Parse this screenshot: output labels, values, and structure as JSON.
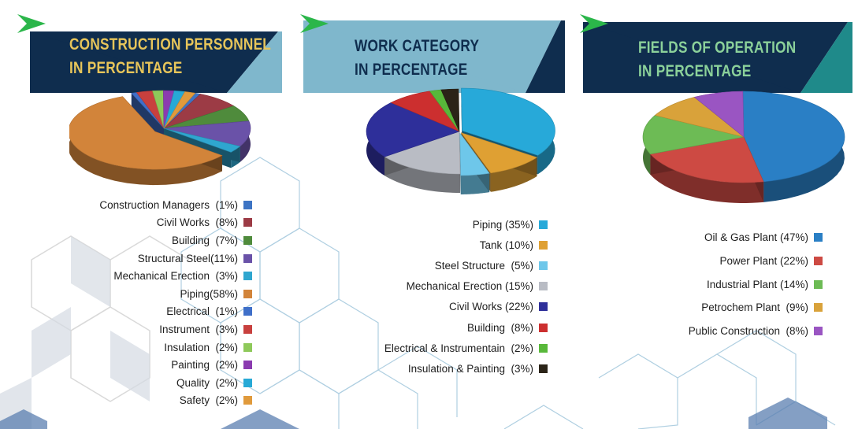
{
  "colors": {
    "banner_dark": "#0f2d4e",
    "banner_light": "#7fb7cc",
    "banner_teal": "#1f8a8a",
    "chevron_green": "#2bb64a",
    "title_yellow": "#e7c55a",
    "title_navy": "#0f2d4e",
    "title_green": "#8bd19a"
  },
  "chart_data": [
    {
      "type": "pie",
      "title_line1": "CONSTRUCTION PERSONNEL",
      "title_line2": "IN PERCENTAGE",
      "slices": [
        {
          "label": "Construction Managers  (1%)",
          "value": 1,
          "color": "#3d74c4"
        },
        {
          "label": "Civil Works  (8%)",
          "value": 8,
          "color": "#9c3b45"
        },
        {
          "label": "Building  (7%)",
          "value": 7,
          "color": "#4f8b3c"
        },
        {
          "label": "Structural Steel(11%)",
          "value": 11,
          "color": "#6a52a8"
        },
        {
          "label": "Mechanical Erection  (3%)",
          "value": 3,
          "color": "#2fa6cf"
        },
        {
          "label": "Piping(58%)",
          "value": 58,
          "color": "#d2843a"
        },
        {
          "label": "Electrical  (1%)",
          "value": 1,
          "color": "#3f6fc9"
        },
        {
          "label": "Instrument  (3%)",
          "value": 3,
          "color": "#c8403e"
        },
        {
          "label": "Insulation  (2%)",
          "value": 2,
          "color": "#8ec95a"
        },
        {
          "label": "Painting  (2%)",
          "value": 2,
          "color": "#8b3bb0"
        },
        {
          "label": "Quality  (2%)",
          "value": 2,
          "color": "#27a9d6"
        },
        {
          "label": "Safety  (2%)",
          "value": 2,
          "color": "#e09a3c"
        }
      ]
    },
    {
      "type": "pie",
      "title_line1": "WORK CATEGORY",
      "title_line2": "IN PERCENTAGE",
      "slices": [
        {
          "label": "Piping (35%)",
          "value": 35,
          "color": "#27a9d9"
        },
        {
          "label": "Tank (10%)",
          "value": 10,
          "color": "#dfa033"
        },
        {
          "label": "Steel Structure  (5%)",
          "value": 5,
          "color": "#6ec7ea"
        },
        {
          "label": "Mechanical Erection (15%)",
          "value": 15,
          "color": "#b9bcc4"
        },
        {
          "label": "Civil Works (22%)",
          "value": 22,
          "color": "#2e2f9a"
        },
        {
          "label": "Building  (8%)",
          "value": 8,
          "color": "#cc2f2f"
        },
        {
          "label": "Electrical & Instrumentain  (2%)",
          "value": 2,
          "color": "#58b83a"
        },
        {
          "label": "Insulation & Painting  (3%)",
          "value": 3,
          "color": "#2b2418"
        }
      ]
    },
    {
      "type": "pie",
      "title_line1": "FIELDS OF OPERATION",
      "title_line2": "IN PERCENTAGE",
      "slices": [
        {
          "label": "Oil & Gas Plant (47%)",
          "value": 47,
          "color": "#2a7fc5"
        },
        {
          "label": "Power Plant (22%)",
          "value": 22,
          "color": "#cd4a43"
        },
        {
          "label": "Industrial Plant (14%)",
          "value": 14,
          "color": "#6dbb55"
        },
        {
          "label": "Petrochem Plant  (9%)",
          "value": 9,
          "color": "#d9a23a"
        },
        {
          "label": "Public Construction  (8%)",
          "value": 8,
          "color": "#9a55c2"
        }
      ]
    }
  ]
}
